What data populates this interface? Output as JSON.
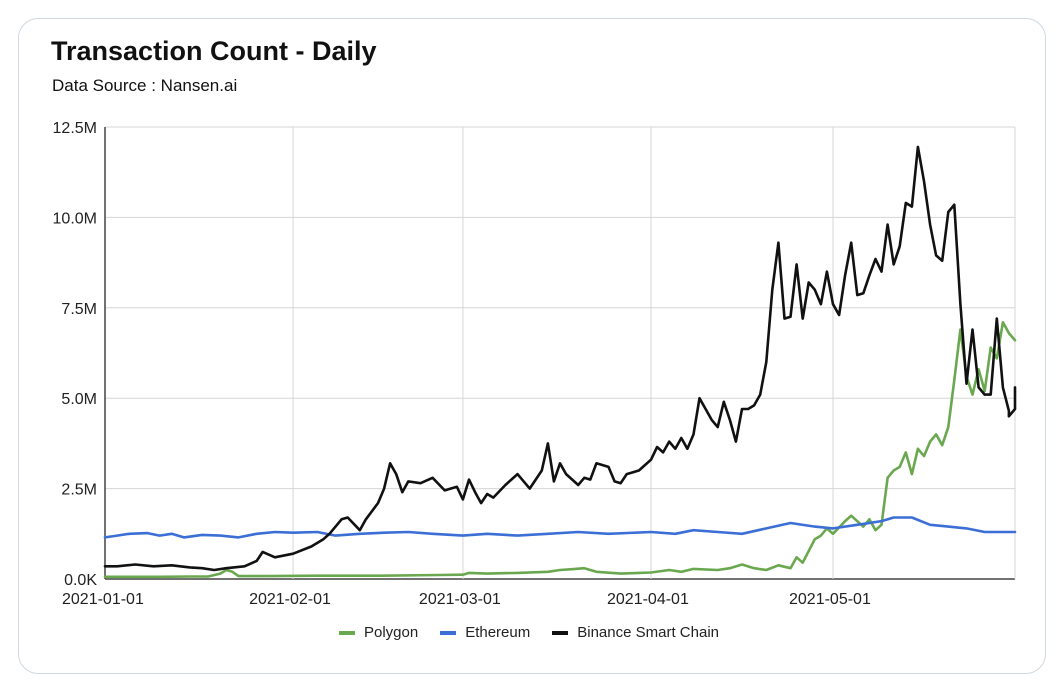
{
  "chart_data": {
    "type": "line",
    "title": "Transaction Count - Daily",
    "subtitle": "Data Source : Nansen.ai",
    "xlabel": "",
    "ylabel": "",
    "x_range": [
      "2021-01-01",
      "2021-05-31"
    ],
    "ylim": [
      0,
      12500000
    ],
    "y_tick_values": [
      0,
      2500000,
      5000000,
      7500000,
      10000000,
      12500000
    ],
    "y_tick_labels": [
      "0.0K",
      "2.5M",
      "5.0M",
      "7.5M",
      "10.0M",
      "12.5M"
    ],
    "x_tick_values": [
      "2021-01-01",
      "2021-02-01",
      "2021-03-01",
      "2021-04-01",
      "2021-05-01"
    ],
    "x_tick_labels": [
      "2021-01-01",
      "2021-02-01",
      "2021-03-01",
      "2021-04-01",
      "2021-05-01"
    ],
    "grid": true,
    "legend_position": "bottom",
    "series": [
      {
        "name": "Polygon",
        "color": "#6aa84f",
        "points": [
          [
            "2021-01-01",
            60000
          ],
          [
            "2021-01-05",
            60000
          ],
          [
            "2021-01-10",
            60000
          ],
          [
            "2021-01-15",
            70000
          ],
          [
            "2021-01-18",
            70000
          ],
          [
            "2021-01-20",
            150000
          ],
          [
            "2021-01-21",
            250000
          ],
          [
            "2021-01-22",
            200000
          ],
          [
            "2021-01-23",
            80000
          ],
          [
            "2021-01-28",
            80000
          ],
          [
            "2021-02-05",
            90000
          ],
          [
            "2021-02-15",
            90000
          ],
          [
            "2021-02-25",
            110000
          ],
          [
            "2021-03-01",
            120000
          ],
          [
            "2021-03-02",
            170000
          ],
          [
            "2021-03-05",
            150000
          ],
          [
            "2021-03-10",
            170000
          ],
          [
            "2021-03-15",
            200000
          ],
          [
            "2021-03-17",
            250000
          ],
          [
            "2021-03-19",
            270000
          ],
          [
            "2021-03-21",
            300000
          ],
          [
            "2021-03-23",
            200000
          ],
          [
            "2021-03-27",
            150000
          ],
          [
            "2021-04-01",
            180000
          ],
          [
            "2021-04-04",
            250000
          ],
          [
            "2021-04-06",
            200000
          ],
          [
            "2021-04-08",
            280000
          ],
          [
            "2021-04-12",
            250000
          ],
          [
            "2021-04-14",
            300000
          ],
          [
            "2021-04-16",
            400000
          ],
          [
            "2021-04-18",
            300000
          ],
          [
            "2021-04-20",
            250000
          ],
          [
            "2021-04-22",
            380000
          ],
          [
            "2021-04-24",
            300000
          ],
          [
            "2021-04-25",
            600000
          ],
          [
            "2021-04-26",
            450000
          ],
          [
            "2021-04-28",
            1100000
          ],
          [
            "2021-04-29",
            1200000
          ],
          [
            "2021-04-30",
            1400000
          ],
          [
            "2021-05-01",
            1250000
          ],
          [
            "2021-05-03",
            1600000
          ],
          [
            "2021-05-04",
            1750000
          ],
          [
            "2021-05-06",
            1450000
          ],
          [
            "2021-05-07",
            1650000
          ],
          [
            "2021-05-08",
            1350000
          ],
          [
            "2021-05-09",
            1500000
          ],
          [
            "2021-05-10",
            2800000
          ],
          [
            "2021-05-11",
            3000000
          ],
          [
            "2021-05-12",
            3100000
          ],
          [
            "2021-05-13",
            3500000
          ],
          [
            "2021-05-14",
            2900000
          ],
          [
            "2021-05-15",
            3600000
          ],
          [
            "2021-05-16",
            3400000
          ],
          [
            "2021-05-17",
            3800000
          ],
          [
            "2021-05-18",
            4000000
          ],
          [
            "2021-05-19",
            3700000
          ],
          [
            "2021-05-20",
            4200000
          ],
          [
            "2021-05-21",
            5500000
          ],
          [
            "2021-05-22",
            6900000
          ],
          [
            "2021-05-23",
            5600000
          ],
          [
            "2021-05-24",
            5100000
          ],
          [
            "2021-05-25",
            5800000
          ],
          [
            "2021-05-26",
            5200000
          ],
          [
            "2021-05-27",
            6400000
          ],
          [
            "2021-05-28",
            6100000
          ],
          [
            "2021-05-29",
            7100000
          ],
          [
            "2021-05-30",
            6800000
          ],
          [
            "2021-05-31",
            6600000
          ]
        ]
      },
      {
        "name": "Ethereum",
        "color": "#3c6fd6",
        "points": [
          [
            "2021-01-01",
            1150000
          ],
          [
            "2021-01-03",
            1200000
          ],
          [
            "2021-01-05",
            1250000
          ],
          [
            "2021-01-08",
            1270000
          ],
          [
            "2021-01-10",
            1200000
          ],
          [
            "2021-01-12",
            1250000
          ],
          [
            "2021-01-14",
            1150000
          ],
          [
            "2021-01-17",
            1220000
          ],
          [
            "2021-01-20",
            1200000
          ],
          [
            "2021-01-23",
            1150000
          ],
          [
            "2021-01-26",
            1250000
          ],
          [
            "2021-01-29",
            1300000
          ],
          [
            "2021-02-01",
            1280000
          ],
          [
            "2021-02-05",
            1300000
          ],
          [
            "2021-02-08",
            1200000
          ],
          [
            "2021-02-12",
            1250000
          ],
          [
            "2021-02-16",
            1280000
          ],
          [
            "2021-02-20",
            1300000
          ],
          [
            "2021-02-24",
            1250000
          ],
          [
            "2021-03-01",
            1200000
          ],
          [
            "2021-03-05",
            1250000
          ],
          [
            "2021-03-10",
            1200000
          ],
          [
            "2021-03-15",
            1250000
          ],
          [
            "2021-03-20",
            1300000
          ],
          [
            "2021-03-25",
            1250000
          ],
          [
            "2021-04-01",
            1300000
          ],
          [
            "2021-04-05",
            1250000
          ],
          [
            "2021-04-08",
            1350000
          ],
          [
            "2021-04-12",
            1300000
          ],
          [
            "2021-04-16",
            1250000
          ],
          [
            "2021-04-20",
            1400000
          ],
          [
            "2021-04-24",
            1550000
          ],
          [
            "2021-04-28",
            1450000
          ],
          [
            "2021-05-01",
            1400000
          ],
          [
            "2021-05-05",
            1500000
          ],
          [
            "2021-05-09",
            1600000
          ],
          [
            "2021-05-11",
            1700000
          ],
          [
            "2021-05-14",
            1700000
          ],
          [
            "2021-05-17",
            1500000
          ],
          [
            "2021-05-20",
            1450000
          ],
          [
            "2021-05-23",
            1400000
          ],
          [
            "2021-05-26",
            1300000
          ],
          [
            "2021-05-29",
            1300000
          ],
          [
            "2021-05-31",
            1300000
          ]
        ]
      },
      {
        "name": "Binance Smart Chain",
        "color": "#111111",
        "points": [
          [
            "2021-01-01",
            350000
          ],
          [
            "2021-01-03",
            350000
          ],
          [
            "2021-01-06",
            400000
          ],
          [
            "2021-01-09",
            350000
          ],
          [
            "2021-01-12",
            380000
          ],
          [
            "2021-01-15",
            320000
          ],
          [
            "2021-01-17",
            300000
          ],
          [
            "2021-01-19",
            250000
          ],
          [
            "2021-01-21",
            300000
          ],
          [
            "2021-01-24",
            350000
          ],
          [
            "2021-01-26",
            500000
          ],
          [
            "2021-01-27",
            750000
          ],
          [
            "2021-01-29",
            600000
          ],
          [
            "2021-02-01",
            700000
          ],
          [
            "2021-02-04",
            900000
          ],
          [
            "2021-02-06",
            1100000
          ],
          [
            "2021-02-07",
            1250000
          ],
          [
            "2021-02-09",
            1650000
          ],
          [
            "2021-02-10",
            1700000
          ],
          [
            "2021-02-12",
            1350000
          ],
          [
            "2021-02-13",
            1650000
          ],
          [
            "2021-02-15",
            2100000
          ],
          [
            "2021-02-16",
            2500000
          ],
          [
            "2021-02-17",
            3200000
          ],
          [
            "2021-02-18",
            2900000
          ],
          [
            "2021-02-19",
            2400000
          ],
          [
            "2021-02-20",
            2700000
          ],
          [
            "2021-02-22",
            2650000
          ],
          [
            "2021-02-24",
            2800000
          ],
          [
            "2021-02-26",
            2450000
          ],
          [
            "2021-02-28",
            2550000
          ],
          [
            "2021-03-01",
            2200000
          ],
          [
            "2021-03-02",
            2750000
          ],
          [
            "2021-03-03",
            2400000
          ],
          [
            "2021-03-04",
            2100000
          ],
          [
            "2021-03-05",
            2350000
          ],
          [
            "2021-03-06",
            2250000
          ],
          [
            "2021-03-08",
            2600000
          ],
          [
            "2021-03-10",
            2900000
          ],
          [
            "2021-03-12",
            2500000
          ],
          [
            "2021-03-14",
            3000000
          ],
          [
            "2021-03-15",
            3750000
          ],
          [
            "2021-03-16",
            2700000
          ],
          [
            "2021-03-17",
            3200000
          ],
          [
            "2021-03-18",
            2900000
          ],
          [
            "2021-03-20",
            2600000
          ],
          [
            "2021-03-21",
            2800000
          ],
          [
            "2021-03-22",
            2750000
          ],
          [
            "2021-03-23",
            3200000
          ],
          [
            "2021-03-25",
            3100000
          ],
          [
            "2021-03-26",
            2700000
          ],
          [
            "2021-03-27",
            2650000
          ],
          [
            "2021-03-28",
            2900000
          ],
          [
            "2021-03-30",
            3000000
          ],
          [
            "2021-04-01",
            3300000
          ],
          [
            "2021-04-02",
            3650000
          ],
          [
            "2021-04-03",
            3500000
          ],
          [
            "2021-04-04",
            3800000
          ],
          [
            "2021-04-05",
            3600000
          ],
          [
            "2021-04-06",
            3900000
          ],
          [
            "2021-04-07",
            3600000
          ],
          [
            "2021-04-08",
            4000000
          ],
          [
            "2021-04-09",
            5000000
          ],
          [
            "2021-04-10",
            4700000
          ],
          [
            "2021-04-11",
            4400000
          ],
          [
            "2021-04-12",
            4200000
          ],
          [
            "2021-04-13",
            4900000
          ],
          [
            "2021-04-14",
            4400000
          ],
          [
            "2021-04-15",
            3800000
          ],
          [
            "2021-04-16",
            4700000
          ],
          [
            "2021-04-17",
            4700000
          ],
          [
            "2021-04-18",
            4800000
          ],
          [
            "2021-04-19",
            5100000
          ],
          [
            "2021-04-20",
            6000000
          ],
          [
            "2021-04-21",
            8000000
          ],
          [
            "2021-04-22",
            9300000
          ],
          [
            "2021-04-23",
            7200000
          ],
          [
            "2021-04-24",
            7250000
          ],
          [
            "2021-04-25",
            8700000
          ],
          [
            "2021-04-26",
            7200000
          ],
          [
            "2021-04-27",
            8200000
          ],
          [
            "2021-04-28",
            8000000
          ],
          [
            "2021-04-29",
            7600000
          ],
          [
            "2021-04-30",
            8500000
          ],
          [
            "2021-05-01",
            7600000
          ],
          [
            "2021-05-02",
            7300000
          ],
          [
            "2021-05-03",
            8400000
          ],
          [
            "2021-05-04",
            9300000
          ],
          [
            "2021-05-05",
            7850000
          ],
          [
            "2021-05-06",
            7900000
          ],
          [
            "2021-05-07",
            8400000
          ],
          [
            "2021-05-08",
            8850000
          ],
          [
            "2021-05-09",
            8500000
          ],
          [
            "2021-05-10",
            9800000
          ],
          [
            "2021-05-11",
            8700000
          ],
          [
            "2021-05-12",
            9200000
          ],
          [
            "2021-05-13",
            10400000
          ],
          [
            "2021-05-14",
            10300000
          ],
          [
            "2021-05-15",
            11950000
          ],
          [
            "2021-05-16",
            11000000
          ],
          [
            "2021-05-17",
            9800000
          ],
          [
            "2021-05-18",
            8950000
          ],
          [
            "2021-05-19",
            8800000
          ],
          [
            "2021-05-20",
            10150000
          ],
          [
            "2021-05-21",
            10350000
          ],
          [
            "2021-05-22",
            7600000
          ],
          [
            "2021-05-23",
            5400000
          ],
          [
            "2021-05-24",
            6900000
          ],
          [
            "2021-05-25",
            5300000
          ],
          [
            "2021-05-26",
            5100000
          ],
          [
            "2021-05-27",
            5100000
          ],
          [
            "2021-05-28",
            7200000
          ],
          [
            "2021-05-29",
            5300000
          ],
          [
            "2021-05-30",
            4650000
          ],
          [
            "2021-05-30",
            4500000
          ],
          [
            "2021-05-31",
            4700000
          ],
          [
            "2021-05-31",
            5300000
          ]
        ]
      }
    ]
  }
}
